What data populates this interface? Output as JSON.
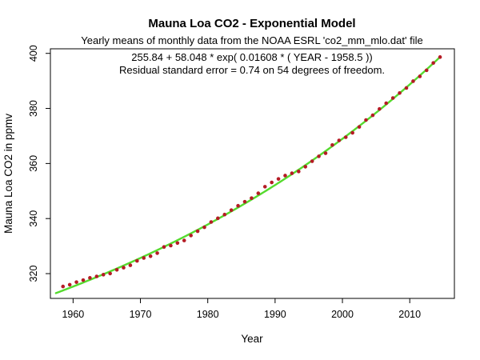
{
  "chart_data": {
    "type": "scatter",
    "title": "Mauna Loa CO2 - Exponential Model",
    "subtitle": "Yearly means of monthly data from the NOAA ESRL 'co2_mm_mlo.dat' file",
    "annotation_line1": "255.84 + 58.048 * exp( 0.01608 * ( YEAR - 1958.5 ))",
    "annotation_line2": "Residual standard error = 0.74 on 54 degrees of freedom.",
    "xlabel": "Year",
    "ylabel": "Mauna Loa CO2 in ppmv",
    "x_ticks": [
      1960,
      1970,
      1980,
      1990,
      2000,
      2010
    ],
    "y_ticks": [
      320,
      340,
      360,
      380,
      400
    ],
    "xlim": [
      1956.63,
      2016.63
    ],
    "ylim": [
      311.0,
      401.66
    ],
    "grid": false,
    "legend": "none",
    "point_color": "#b51c25",
    "points": {
      "x_offset": 0.5,
      "years": [
        1958,
        1959,
        1960,
        1961,
        1962,
        1963,
        1964,
        1965,
        1966,
        1967,
        1968,
        1969,
        1970,
        1971,
        1972,
        1973,
        1974,
        1975,
        1976,
        1977,
        1978,
        1979,
        1980,
        1981,
        1982,
        1983,
        1984,
        1985,
        1986,
        1987,
        1988,
        1989,
        1990,
        1991,
        1992,
        1993,
        1994,
        1995,
        1996,
        1997,
        1998,
        1999,
        2000,
        2001,
        2002,
        2003,
        2004,
        2005,
        2006,
        2007,
        2008,
        2009,
        2010,
        2011,
        2012,
        2013,
        2014
      ],
      "values": [
        315.33,
        315.97,
        316.91,
        317.64,
        318.45,
        318.99,
        319.62,
        320.04,
        321.38,
        322.16,
        323.04,
        324.62,
        325.68,
        326.32,
        327.45,
        329.68,
        330.18,
        331.11,
        332.04,
        333.83,
        335.4,
        336.84,
        338.75,
        340.11,
        341.45,
        343.05,
        344.65,
        346.12,
        347.42,
        349.19,
        351.57,
        353.12,
        354.39,
        355.61,
        356.45,
        357.1,
        358.83,
        360.82,
        362.61,
        363.73,
        366.7,
        368.38,
        369.55,
        371.14,
        373.28,
        375.8,
        377.52,
        379.8,
        381.9,
        383.79,
        385.6,
        387.43,
        389.9,
        391.65,
        393.85,
        396.52,
        398.65
      ]
    },
    "model": {
      "intercept": 255.84,
      "coef": 58.048,
      "rate": 0.01608,
      "t0": 1958.5,
      "draw_from": 1957.45,
      "draw_to": 2014.5,
      "color": "#55db2e",
      "residual_std_error": 0.74,
      "degrees_of_freedom": 54
    }
  }
}
